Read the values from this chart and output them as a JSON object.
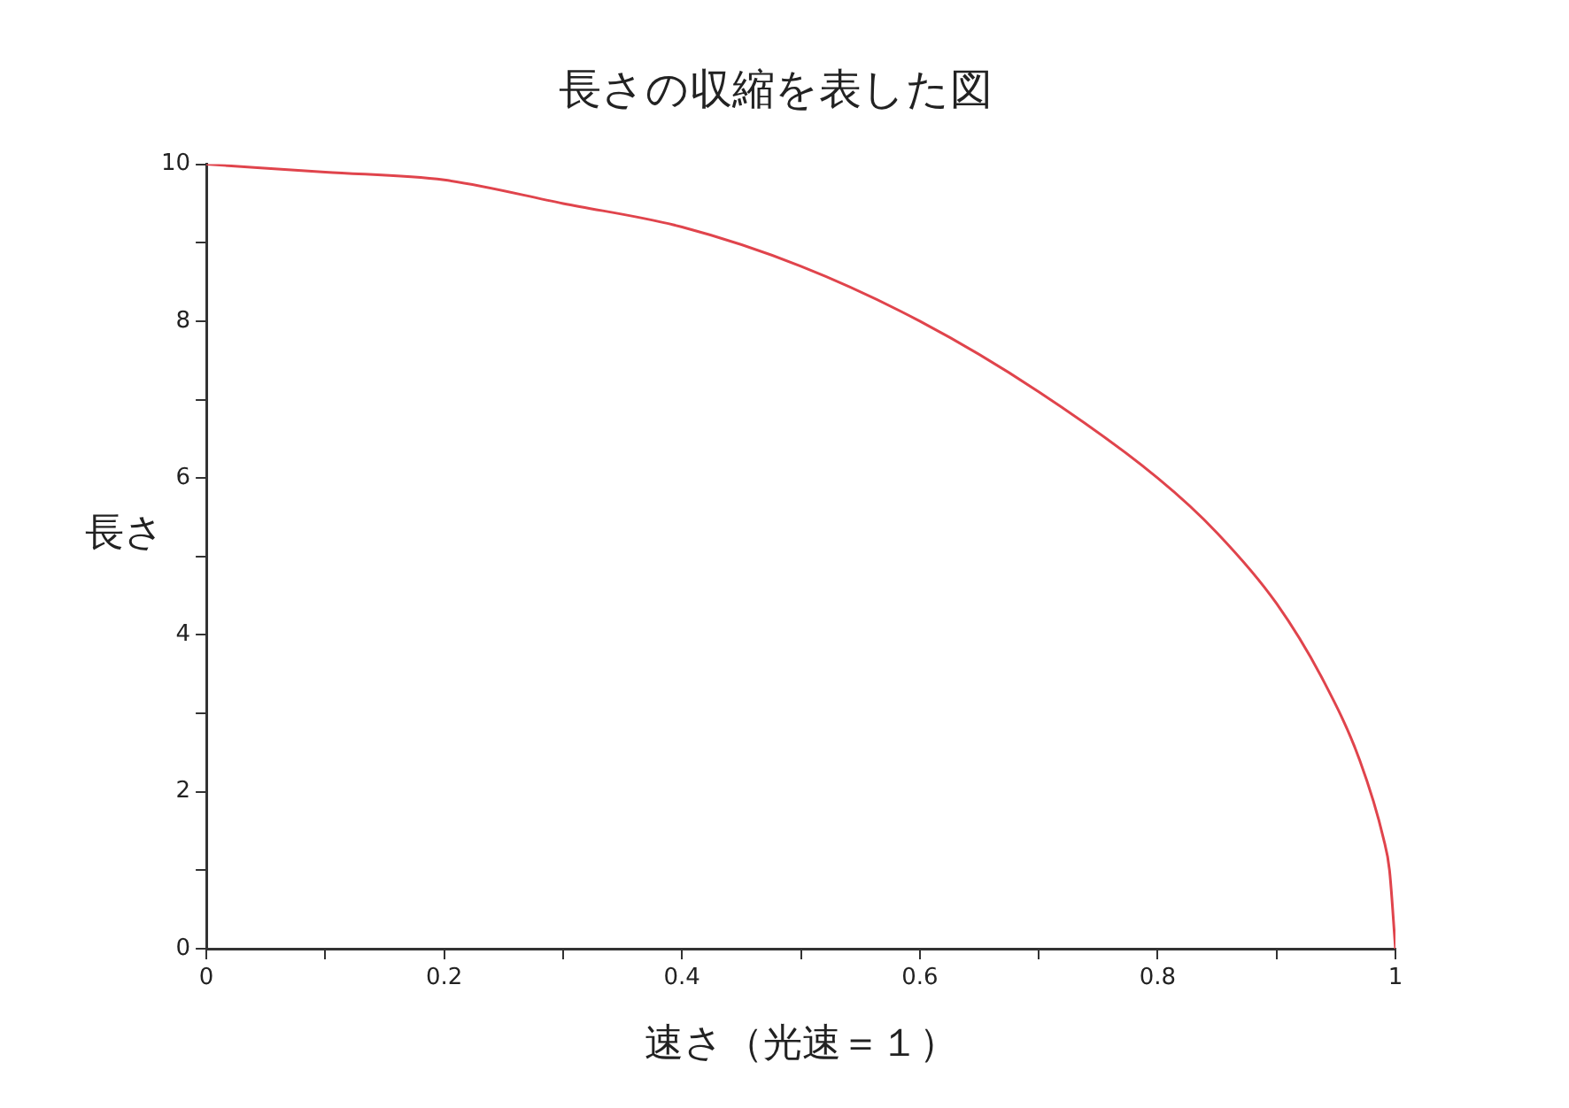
{
  "chart_data": {
    "type": "line",
    "title": "長さの収縮を表した図",
    "xlabel": "速さ（光速＝１）",
    "ylabel": "長さ",
    "x": [
      0,
      0.1,
      0.2,
      0.3,
      0.4,
      0.5,
      0.6,
      0.7,
      0.8,
      0.85,
      0.9,
      0.94,
      0.97,
      0.99,
      0.995,
      1
    ],
    "series": [
      {
        "color": "#e0444c",
        "values": [
          10,
          9.9,
          9.8,
          9.5,
          9.2,
          8.7,
          8.0,
          7.1,
          6.0,
          5.3,
          4.4,
          3.4,
          2.4,
          1.4,
          1.0,
          0
        ]
      }
    ],
    "xlim": [
      0,
      1
    ],
    "ylim": [
      0,
      10
    ],
    "xticks": [
      0,
      {
        "value": 0.1,
        "label": null
      },
      0.2,
      {
        "value": 0.3,
        "label": null
      },
      0.4,
      {
        "value": 0.5,
        "label": null
      },
      0.6,
      {
        "value": 0.7,
        "label": null
      },
      0.8,
      {
        "value": 0.9,
        "label": null
      },
      1
    ],
    "yticks": [
      0,
      {
        "value": 1,
        "label": null
      },
      2,
      {
        "value": 3,
        "label": null
      },
      4,
      {
        "value": 5,
        "label": null
      },
      6,
      {
        "value": 7,
        "label": null
      },
      8,
      {
        "value": 9,
        "label": null
      },
      10
    ],
    "grid": false,
    "legend": false,
    "marker": "none",
    "line_style": "solid"
  }
}
